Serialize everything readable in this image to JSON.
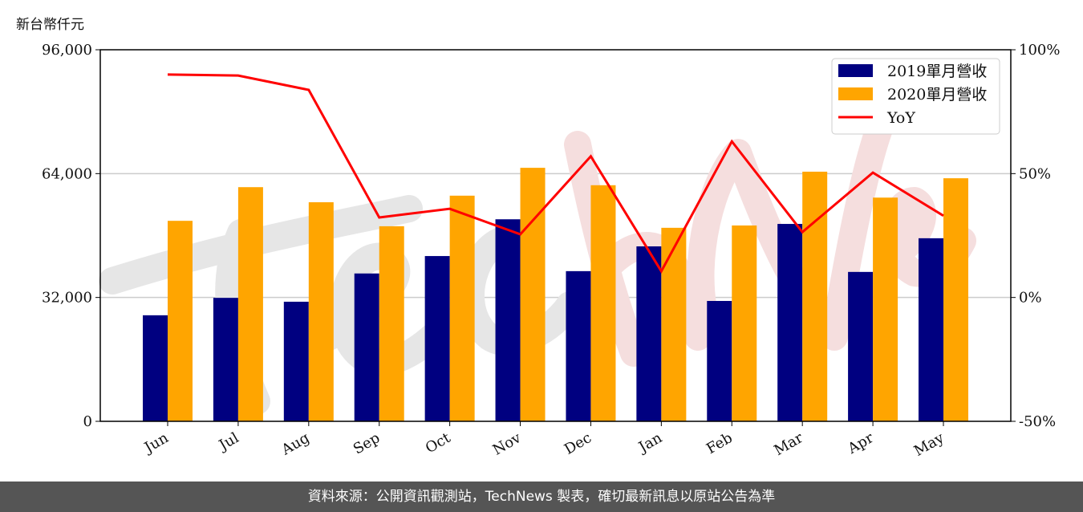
{
  "chart_data": {
    "type": "bar+line",
    "left_axis_label": "新台幣仟元",
    "categories": [
      "Jun",
      "Jul",
      "Aug",
      "Sep",
      "Oct",
      "Nov",
      "Dec",
      "Jan",
      "Feb",
      "Mar",
      "Apr",
      "May"
    ],
    "series": [
      {
        "name": "2019單月營收",
        "type": "bar",
        "axis": "left",
        "color": "#000080",
        "values": [
          27400,
          31900,
          30900,
          38200,
          42700,
          52200,
          38800,
          45200,
          31100,
          51000,
          38600,
          47300
        ]
      },
      {
        "name": "2020單月營收",
        "type": "bar",
        "axis": "left",
        "color": "#FFA500",
        "values": [
          51800,
          60500,
          56600,
          50400,
          58300,
          65500,
          61000,
          50000,
          50600,
          64500,
          57800,
          62800
        ]
      },
      {
        "name": "YoY",
        "type": "line",
        "axis": "right",
        "color": "#FF0000",
        "values": [
          90,
          89.6,
          83.8,
          32.3,
          35.8,
          25.5,
          57,
          10.6,
          63,
          26.4,
          50.4,
          33
        ]
      }
    ],
    "left_ylim": [
      0,
      96000
    ],
    "left_ticks": [
      "0",
      "32,000",
      "64,000",
      "96,000"
    ],
    "right_ylim": [
      -50,
      100
    ],
    "right_ticks": [
      "-50%",
      "0%",
      "50%",
      "100%"
    ],
    "grid": "horizontal",
    "legend": "top-right"
  },
  "watermark": "TechNews",
  "footer": "資料來源：公開資訊觀測站，TechNews 製表，確切最新訊息以原站公告為準"
}
